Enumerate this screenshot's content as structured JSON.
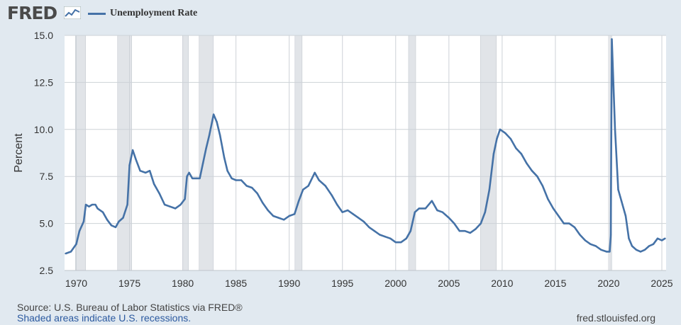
{
  "logo": {
    "text": "FRED"
  },
  "chart_data": {
    "type": "line",
    "title": "",
    "legend_position": "top-left",
    "grid": true,
    "xlabel": "",
    "ylabel": "Percent",
    "ylim": [
      2.5,
      15.0
    ],
    "xlim": [
      1968.9,
      2025.4
    ],
    "yticks": [
      "15.0",
      "12.5",
      "10.0",
      "7.5",
      "5.0",
      "2.5"
    ],
    "ytick_values": [
      15.0,
      12.5,
      10.0,
      7.5,
      5.0,
      2.5
    ],
    "xticks": [
      "1970",
      "1975",
      "1980",
      "1985",
      "1990",
      "1995",
      "2000",
      "2005",
      "2010",
      "2015",
      "2020",
      "2025"
    ],
    "xtick_values": [
      1970,
      1975,
      1980,
      1985,
      1990,
      1995,
      2000,
      2005,
      2010,
      2015,
      2020,
      2025
    ],
    "series": [
      {
        "name": "Unemployment Rate",
        "color": "#4572a7",
        "points": [
          [
            1969.0,
            3.4
          ],
          [
            1969.5,
            3.5
          ],
          [
            1970.0,
            3.9
          ],
          [
            1970.3,
            4.6
          ],
          [
            1970.7,
            5.1
          ],
          [
            1970.9,
            6.0
          ],
          [
            1971.2,
            5.9
          ],
          [
            1971.5,
            6.0
          ],
          [
            1971.8,
            6.0
          ],
          [
            1972.0,
            5.8
          ],
          [
            1972.5,
            5.6
          ],
          [
            1972.9,
            5.2
          ],
          [
            1973.3,
            4.9
          ],
          [
            1973.7,
            4.8
          ],
          [
            1974.0,
            5.1
          ],
          [
            1974.4,
            5.3
          ],
          [
            1974.8,
            6.0
          ],
          [
            1975.0,
            8.1
          ],
          [
            1975.3,
            8.9
          ],
          [
            1975.6,
            8.4
          ],
          [
            1976.0,
            7.8
          ],
          [
            1976.5,
            7.7
          ],
          [
            1976.9,
            7.8
          ],
          [
            1977.3,
            7.1
          ],
          [
            1977.8,
            6.6
          ],
          [
            1978.3,
            6.0
          ],
          [
            1978.8,
            5.9
          ],
          [
            1979.3,
            5.8
          ],
          [
            1979.8,
            6.0
          ],
          [
            1980.2,
            6.3
          ],
          [
            1980.4,
            7.5
          ],
          [
            1980.6,
            7.7
          ],
          [
            1980.9,
            7.4
          ],
          [
            1981.3,
            7.4
          ],
          [
            1981.6,
            7.4
          ],
          [
            1981.9,
            8.2
          ],
          [
            1982.2,
            9.0
          ],
          [
            1982.5,
            9.7
          ],
          [
            1982.9,
            10.8
          ],
          [
            1983.2,
            10.4
          ],
          [
            1983.5,
            9.7
          ],
          [
            1983.9,
            8.5
          ],
          [
            1984.2,
            7.8
          ],
          [
            1984.6,
            7.4
          ],
          [
            1985.0,
            7.3
          ],
          [
            1985.5,
            7.3
          ],
          [
            1986.0,
            7.0
          ],
          [
            1986.5,
            6.9
          ],
          [
            1987.0,
            6.6
          ],
          [
            1987.5,
            6.1
          ],
          [
            1988.0,
            5.7
          ],
          [
            1988.5,
            5.4
          ],
          [
            1989.0,
            5.3
          ],
          [
            1989.5,
            5.2
          ],
          [
            1990.0,
            5.4
          ],
          [
            1990.5,
            5.5
          ],
          [
            1990.9,
            6.2
          ],
          [
            1991.3,
            6.8
          ],
          [
            1991.8,
            7.0
          ],
          [
            1992.4,
            7.7
          ],
          [
            1992.8,
            7.3
          ],
          [
            1993.4,
            7.0
          ],
          [
            1994.0,
            6.5
          ],
          [
            1994.5,
            6.0
          ],
          [
            1995.0,
            5.6
          ],
          [
            1995.5,
            5.7
          ],
          [
            1996.0,
            5.5
          ],
          [
            1996.5,
            5.3
          ],
          [
            1997.0,
            5.1
          ],
          [
            1997.5,
            4.8
          ],
          [
            1998.0,
            4.6
          ],
          [
            1998.5,
            4.4
          ],
          [
            1999.0,
            4.3
          ],
          [
            1999.5,
            4.2
          ],
          [
            2000.0,
            4.0
          ],
          [
            2000.5,
            4.0
          ],
          [
            2001.0,
            4.2
          ],
          [
            2001.4,
            4.6
          ],
          [
            2001.8,
            5.6
          ],
          [
            2002.2,
            5.8
          ],
          [
            2002.8,
            5.8
          ],
          [
            2003.4,
            6.2
          ],
          [
            2003.9,
            5.7
          ],
          [
            2004.4,
            5.6
          ],
          [
            2005.0,
            5.3
          ],
          [
            2005.5,
            5.0
          ],
          [
            2006.0,
            4.6
          ],
          [
            2006.5,
            4.6
          ],
          [
            2007.0,
            4.5
          ],
          [
            2007.5,
            4.7
          ],
          [
            2008.0,
            5.0
          ],
          [
            2008.4,
            5.6
          ],
          [
            2008.8,
            6.8
          ],
          [
            2009.2,
            8.7
          ],
          [
            2009.5,
            9.5
          ],
          [
            2009.8,
            10.0
          ],
          [
            2010.3,
            9.8
          ],
          [
            2010.8,
            9.5
          ],
          [
            2011.3,
            9.0
          ],
          [
            2011.8,
            8.7
          ],
          [
            2012.3,
            8.2
          ],
          [
            2012.8,
            7.8
          ],
          [
            2013.3,
            7.5
          ],
          [
            2013.8,
            7.0
          ],
          [
            2014.3,
            6.3
          ],
          [
            2014.8,
            5.8
          ],
          [
            2015.3,
            5.4
          ],
          [
            2015.8,
            5.0
          ],
          [
            2016.3,
            5.0
          ],
          [
            2016.8,
            4.8
          ],
          [
            2017.3,
            4.4
          ],
          [
            2017.8,
            4.1
          ],
          [
            2018.3,
            3.9
          ],
          [
            2018.8,
            3.8
          ],
          [
            2019.3,
            3.6
          ],
          [
            2019.8,
            3.5
          ],
          [
            2020.1,
            3.5
          ],
          [
            2020.2,
            4.4
          ],
          [
            2020.3,
            14.8
          ],
          [
            2020.6,
            10.0
          ],
          [
            2020.9,
            6.8
          ],
          [
            2021.2,
            6.2
          ],
          [
            2021.6,
            5.4
          ],
          [
            2021.9,
            4.2
          ],
          [
            2022.2,
            3.8
          ],
          [
            2022.6,
            3.6
          ],
          [
            2023.0,
            3.5
          ],
          [
            2023.4,
            3.6
          ],
          [
            2023.8,
            3.8
          ],
          [
            2024.2,
            3.9
          ],
          [
            2024.6,
            4.2
          ],
          [
            2025.0,
            4.1
          ],
          [
            2025.3,
            4.2
          ]
        ]
      }
    ],
    "recessions": [
      [
        1969.92,
        1970.88
      ],
      [
        1973.88,
        1975.21
      ],
      [
        1980.0,
        1980.54
      ],
      [
        1981.54,
        1982.88
      ],
      [
        1990.54,
        1991.21
      ],
      [
        2001.21,
        2001.88
      ],
      [
        2007.96,
        2009.46
      ],
      [
        2020.12,
        2020.29
      ]
    ]
  },
  "footer": {
    "source": "Source: U.S. Bureau of Labor Statistics via FRED®",
    "note": "Shaded areas indicate U.S. recessions.",
    "site": "fred.stlouisfed.org"
  }
}
